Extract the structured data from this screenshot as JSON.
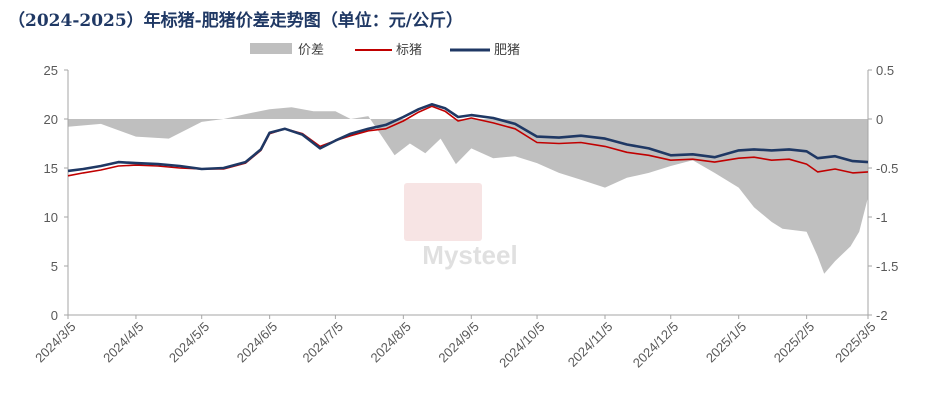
{
  "title": "（2024-2025）年标猪-肥猪价差走势图（单位：元/公斤）",
  "chart_data": {
    "type": "line",
    "title": "（2024-2025）年标猪-肥猪价差走势图（单位：元/公斤）",
    "watermark": "Mysteel",
    "legend_position": "top",
    "grid": false,
    "x_axis": {
      "ticks": [
        "2024/3/5",
        "2024/4/5",
        "2024/5/5",
        "2024/6/5",
        "2024/7/5",
        "2024/8/5",
        "2024/9/5",
        "2024/10/5",
        "2024/11/5",
        "2024/12/5",
        "2025/1/5",
        "2025/2/5",
        "2025/3/5"
      ],
      "range": [
        "2024/3/5",
        "2025/3/5"
      ]
    },
    "y_left": {
      "ylim": [
        0,
        25
      ],
      "ticks": [
        0,
        5,
        10,
        15,
        20,
        25
      ]
    },
    "y_right": {
      "ylim": [
        -2,
        0.5
      ],
      "ticks": [
        "-2",
        "-1.5",
        "-1",
        "-0.5",
        "0",
        "0.5"
      ]
    },
    "series": [
      {
        "name": "价差",
        "type": "area",
        "axis": "right",
        "color": "#bfbfbf",
        "points": [
          [
            "2024/3/5",
            -0.08
          ],
          [
            "2024/3/20",
            -0.05
          ],
          [
            "2024/4/5",
            -0.18
          ],
          [
            "2024/4/20",
            -0.2
          ],
          [
            "2024/5/5",
            -0.03
          ],
          [
            "2024/5/15",
            0.0
          ],
          [
            "2024/5/25",
            0.05
          ],
          [
            "2024/6/5",
            0.1
          ],
          [
            "2024/6/15",
            0.12
          ],
          [
            "2024/6/25",
            0.08
          ],
          [
            "2024/7/5",
            0.08
          ],
          [
            "2024/7/12",
            0.0
          ],
          [
            "2024/7/20",
            0.03
          ],
          [
            "2024/8/1",
            -0.37
          ],
          [
            "2024/8/8",
            -0.25
          ],
          [
            "2024/8/15",
            -0.35
          ],
          [
            "2024/8/22",
            -0.2
          ],
          [
            "2024/8/29",
            -0.46
          ],
          [
            "2024/9/5",
            -0.3
          ],
          [
            "2024/9/15",
            -0.4
          ],
          [
            "2024/9/25",
            -0.38
          ],
          [
            "2024/10/5",
            -0.45
          ],
          [
            "2024/10/15",
            -0.55
          ],
          [
            "2024/10/25",
            -0.62
          ],
          [
            "2024/11/5",
            -0.7
          ],
          [
            "2024/11/15",
            -0.6
          ],
          [
            "2024/11/25",
            -0.55
          ],
          [
            "2024/12/5",
            -0.48
          ],
          [
            "2024/12/15",
            -0.42
          ],
          [
            "2024/12/25",
            -0.55
          ],
          [
            "2025/1/5",
            -0.7
          ],
          [
            "2025/1/12",
            -0.9
          ],
          [
            "2025/1/20",
            -1.05
          ],
          [
            "2025/1/25",
            -1.12
          ],
          [
            "2025/2/5",
            -1.15
          ],
          [
            "2025/2/10",
            -1.4
          ],
          [
            "2025/2/13",
            -1.58
          ],
          [
            "2025/2/18",
            -1.45
          ],
          [
            "2025/2/25",
            -1.3
          ],
          [
            "2025/3/1",
            -1.15
          ],
          [
            "2025/3/5",
            -0.8
          ]
        ]
      },
      {
        "name": "标猪",
        "type": "line",
        "axis": "left",
        "color": "#c00000",
        "points": [
          [
            "2024/3/5",
            14.2
          ],
          [
            "2024/3/12",
            14.5
          ],
          [
            "2024/3/20",
            14.8
          ],
          [
            "2024/3/28",
            15.2
          ],
          [
            "2024/4/5",
            15.3
          ],
          [
            "2024/4/15",
            15.2
          ],
          [
            "2024/4/25",
            15.0
          ],
          [
            "2024/5/5",
            14.9
          ],
          [
            "2024/5/15",
            14.9
          ],
          [
            "2024/5/25",
            15.5
          ],
          [
            "2024/6/1",
            16.8
          ],
          [
            "2024/6/5",
            18.5
          ],
          [
            "2024/6/12",
            19.0
          ],
          [
            "2024/6/20",
            18.5
          ],
          [
            "2024/6/28",
            17.2
          ],
          [
            "2024/7/5",
            17.8
          ],
          [
            "2024/7/12",
            18.3
          ],
          [
            "2024/7/20",
            18.8
          ],
          [
            "2024/7/28",
            19.0
          ],
          [
            "2024/8/5",
            19.8
          ],
          [
            "2024/8/12",
            20.7
          ],
          [
            "2024/8/18",
            21.3
          ],
          [
            "2024/8/24",
            20.8
          ],
          [
            "2024/8/30",
            19.8
          ],
          [
            "2024/9/5",
            20.1
          ],
          [
            "2024/9/15",
            19.6
          ],
          [
            "2024/9/25",
            19.0
          ],
          [
            "2024/10/5",
            17.6
          ],
          [
            "2024/10/15",
            17.5
          ],
          [
            "2024/10/25",
            17.6
          ],
          [
            "2024/11/5",
            17.2
          ],
          [
            "2024/11/15",
            16.6
          ],
          [
            "2024/11/25",
            16.3
          ],
          [
            "2024/12/5",
            15.8
          ],
          [
            "2024/12/15",
            15.9
          ],
          [
            "2024/12/25",
            15.6
          ],
          [
            "2025/1/5",
            16.0
          ],
          [
            "2025/1/12",
            16.1
          ],
          [
            "2025/1/20",
            15.8
          ],
          [
            "2025/1/28",
            15.9
          ],
          [
            "2025/2/5",
            15.4
          ],
          [
            "2025/2/10",
            14.6
          ],
          [
            "2025/2/18",
            14.9
          ],
          [
            "2025/2/26",
            14.5
          ],
          [
            "2025/3/5",
            14.6
          ]
        ]
      },
      {
        "name": "肥猪",
        "type": "line",
        "axis": "left",
        "color": "#1f3864",
        "points": [
          [
            "2024/3/5",
            14.7
          ],
          [
            "2024/3/12",
            14.9
          ],
          [
            "2024/3/20",
            15.2
          ],
          [
            "2024/3/28",
            15.6
          ],
          [
            "2024/4/5",
            15.5
          ],
          [
            "2024/4/15",
            15.4
          ],
          [
            "2024/4/25",
            15.2
          ],
          [
            "2024/5/5",
            14.9
          ],
          [
            "2024/5/15",
            15.0
          ],
          [
            "2024/5/25",
            15.6
          ],
          [
            "2024/6/1",
            16.9
          ],
          [
            "2024/6/5",
            18.6
          ],
          [
            "2024/6/12",
            19.0
          ],
          [
            "2024/6/20",
            18.4
          ],
          [
            "2024/6/28",
            17.0
          ],
          [
            "2024/7/5",
            17.8
          ],
          [
            "2024/7/12",
            18.5
          ],
          [
            "2024/7/20",
            19.0
          ],
          [
            "2024/7/28",
            19.4
          ],
          [
            "2024/8/5",
            20.2
          ],
          [
            "2024/8/12",
            21.0
          ],
          [
            "2024/8/18",
            21.5
          ],
          [
            "2024/8/24",
            21.1
          ],
          [
            "2024/8/30",
            20.2
          ],
          [
            "2024/9/5",
            20.4
          ],
          [
            "2024/9/15",
            20.1
          ],
          [
            "2024/9/25",
            19.5
          ],
          [
            "2024/10/5",
            18.2
          ],
          [
            "2024/10/15",
            18.1
          ],
          [
            "2024/10/25",
            18.3
          ],
          [
            "2024/11/5",
            18.0
          ],
          [
            "2024/11/15",
            17.4
          ],
          [
            "2024/11/25",
            17.0
          ],
          [
            "2024/12/5",
            16.3
          ],
          [
            "2024/12/15",
            16.4
          ],
          [
            "2024/12/25",
            16.1
          ],
          [
            "2025/1/5",
            16.8
          ],
          [
            "2025/1/12",
            16.9
          ],
          [
            "2025/1/20",
            16.8
          ],
          [
            "2025/1/28",
            16.9
          ],
          [
            "2025/2/5",
            16.7
          ],
          [
            "2025/2/10",
            16.0
          ],
          [
            "2025/2/18",
            16.2
          ],
          [
            "2025/2/26",
            15.7
          ],
          [
            "2025/3/5",
            15.6
          ]
        ]
      }
    ]
  }
}
